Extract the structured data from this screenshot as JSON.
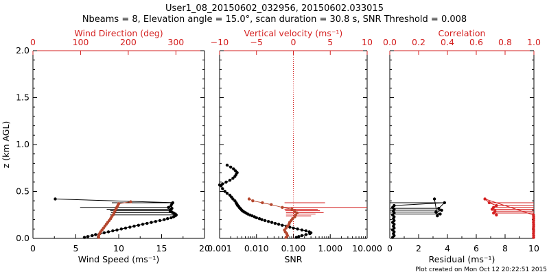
{
  "title_line1": "User1_08_20150602_032956, 20150602.033015",
  "title_line2": "Nbeams = 8, Elevation angle = 15.0°, scan duration = 30.8 s, SNR Threshold = 0.008",
  "credit": "Plot created on Mon Oct 12 20:22:51 2015",
  "colors": {
    "primary": "#000000",
    "secondary": "#d42020",
    "series_brown": "#b5472e"
  },
  "chart_data": [
    {
      "type": "scatter",
      "y_axis": {
        "label": "z (km AGL)",
        "range": [
          0,
          2.0
        ],
        "ticks": [
          "0.0",
          "0.5",
          "1.0",
          "1.5",
          "2.0"
        ]
      },
      "bottom_axis": {
        "label": "Wind Speed (ms⁻¹)",
        "range": [
          0,
          20
        ],
        "ticks": [
          "0",
          "5",
          "10",
          "15",
          "20"
        ]
      },
      "top_axis": {
        "label": "Wind Direction (deg)",
        "range": [
          0,
          360
        ],
        "ticks": [
          "0",
          "100",
          "200",
          "300"
        ]
      },
      "series": [
        {
          "axis": "bottom",
          "color": "#000000",
          "points": [
            [
              6.0,
              0.01
            ],
            [
              6.4,
              0.02
            ],
            [
              6.9,
              0.03
            ],
            [
              7.3,
              0.04
            ],
            [
              7.8,
              0.05
            ],
            [
              8.3,
              0.06
            ],
            [
              8.8,
              0.07
            ],
            [
              9.3,
              0.08
            ],
            [
              9.8,
              0.09
            ],
            [
              10.3,
              0.1
            ],
            [
              10.8,
              0.11
            ],
            [
              11.3,
              0.12
            ],
            [
              11.8,
              0.13
            ],
            [
              12.3,
              0.14
            ],
            [
              12.8,
              0.15
            ],
            [
              13.3,
              0.16
            ],
            [
              13.8,
              0.17
            ],
            [
              14.3,
              0.18
            ],
            [
              14.8,
              0.19
            ],
            [
              15.3,
              0.2
            ],
            [
              15.7,
              0.21
            ],
            [
              16.1,
              0.22
            ],
            [
              16.4,
              0.23
            ],
            [
              16.6,
              0.24
            ],
            [
              16.7,
              0.25
            ],
            [
              16.6,
              0.26
            ],
            [
              16.4,
              0.27
            ],
            [
              16.2,
              0.28
            ],
            [
              16.0,
              0.29
            ],
            [
              16.0,
              0.3
            ],
            [
              16.1,
              0.31
            ],
            [
              16.2,
              0.32
            ],
            [
              15.8,
              0.33
            ],
            [
              16.1,
              0.35
            ],
            [
              16.2,
              0.37
            ],
            [
              16.3,
              0.38
            ],
            [
              2.6,
              0.42
            ]
          ]
        },
        {
          "axis": "top",
          "color": "#b5472e",
          "points": [
            [
              138,
              0.01
            ],
            [
              138,
              0.03
            ],
            [
              140,
              0.05
            ],
            [
              142,
              0.07
            ],
            [
              145,
              0.09
            ],
            [
              148,
              0.11
            ],
            [
              151,
              0.13
            ],
            [
              154,
              0.15
            ],
            [
              157,
              0.17
            ],
            [
              160,
              0.19
            ],
            [
              163,
              0.21
            ],
            [
              165,
              0.23
            ],
            [
              168,
              0.25
            ],
            [
              170,
              0.27
            ],
            [
              172,
              0.29
            ],
            [
              174,
              0.31
            ],
            [
              176,
              0.33
            ],
            [
              178,
              0.35
            ],
            [
              180,
              0.37
            ],
            [
              205,
              0.39
            ]
          ]
        }
      ],
      "lines": [
        {
          "axis": "bottom",
          "y": 0.38,
          "x_from": 9.2,
          "x_to": 16.3,
          "color": "#000000"
        },
        {
          "axis": "bottom",
          "y": 0.33,
          "x_from": 5.5,
          "x_to": 16.0,
          "color": "#000000"
        },
        {
          "axis": "bottom",
          "y": 0.31,
          "x_from": 8.6,
          "x_to": 16.1,
          "color": "#000000"
        },
        {
          "axis": "bottom",
          "y": 0.295,
          "x_from": 9.0,
          "x_to": 16.0,
          "color": "#000000"
        },
        {
          "axis": "bottom",
          "y": 0.275,
          "x_from": 9.1,
          "x_to": 16.3,
          "color": "#000000"
        },
        {
          "axis": "bottom",
          "y": 0.25,
          "x_from": 9.0,
          "x_to": 16.5,
          "color": "#000000"
        }
      ]
    },
    {
      "type": "scatter",
      "x_log": true,
      "bottom_axis": {
        "label": "SNR",
        "range": [
          0.001,
          10
        ],
        "ticks": [
          "0.001",
          "0.010",
          "0.100",
          "1.000",
          "10.000"
        ]
      },
      "top_axis": {
        "label": "Vertical velocity (ms⁻¹)",
        "range": [
          -10,
          10
        ],
        "ticks": [
          "−10",
          "−5",
          "0",
          "5",
          "10"
        ]
      },
      "reference_line": {
        "axis": "top",
        "x": 0,
        "style": "dotted",
        "color": "#d42020"
      },
      "series": [
        {
          "axis": "bottom",
          "color": "#000000",
          "points": [
            [
              0.12,
              0.01
            ],
            [
              0.14,
              0.02
            ],
            [
              0.17,
              0.03
            ],
            [
              0.22,
              0.04
            ],
            [
              0.28,
              0.05
            ],
            [
              0.3,
              0.06
            ],
            [
              0.27,
              0.07
            ],
            [
              0.22,
              0.08
            ],
            [
              0.17,
              0.09
            ],
            [
              0.13,
              0.1
            ],
            [
              0.1,
              0.11
            ],
            [
              0.08,
              0.12
            ],
            [
              0.065,
              0.13
            ],
            [
              0.05,
              0.14
            ],
            [
              0.04,
              0.15
            ],
            [
              0.032,
              0.16
            ],
            [
              0.026,
              0.17
            ],
            [
              0.021,
              0.18
            ],
            [
              0.017,
              0.19
            ],
            [
              0.014,
              0.2
            ],
            [
              0.012,
              0.21
            ],
            [
              0.01,
              0.22
            ],
            [
              0.0088,
              0.23
            ],
            [
              0.0076,
              0.24
            ],
            [
              0.0066,
              0.25
            ],
            [
              0.0058,
              0.26
            ],
            [
              0.0052,
              0.27
            ],
            [
              0.0047,
              0.28
            ],
            [
              0.0043,
              0.29
            ],
            [
              0.004,
              0.3
            ],
            [
              0.0038,
              0.31
            ],
            [
              0.0036,
              0.32
            ],
            [
              0.0034,
              0.33
            ],
            [
              0.0033,
              0.34
            ],
            [
              0.0031,
              0.35
            ],
            [
              0.003,
              0.36
            ],
            [
              0.0029,
              0.37
            ],
            [
              0.0028,
              0.38
            ],
            [
              0.0026,
              0.4
            ],
            [
              0.0023,
              0.42
            ],
            [
              0.0021,
              0.44
            ],
            [
              0.0019,
              0.46
            ],
            [
              0.0016,
              0.48
            ],
            [
              0.0014,
              0.5
            ],
            [
              0.0012,
              0.53
            ],
            [
              0.0011,
              0.56
            ],
            [
              0.001,
              0.57
            ],
            [
              0.0012,
              0.58
            ],
            [
              0.0015,
              0.6
            ],
            [
              0.0019,
              0.62
            ],
            [
              0.0023,
              0.64
            ],
            [
              0.0026,
              0.66
            ],
            [
              0.0028,
              0.68
            ],
            [
              0.003,
              0.7
            ],
            [
              0.0027,
              0.72
            ],
            [
              0.0024,
              0.74
            ],
            [
              0.002,
              0.76
            ],
            [
              0.0016,
              0.78
            ]
          ]
        },
        {
          "axis": "top",
          "color": "#b5472e",
          "points": [
            [
              -1,
              0.01
            ],
            [
              -0.8,
              0.03
            ],
            [
              -0.9,
              0.05
            ],
            [
              -1.1,
              0.07
            ],
            [
              -1.2,
              0.09
            ],
            [
              -1.0,
              0.11
            ],
            [
              -0.8,
              0.13
            ],
            [
              -0.6,
              0.15
            ],
            [
              -0.5,
              0.17
            ],
            [
              -0.3,
              0.19
            ],
            [
              -0.1,
              0.21
            ],
            [
              0.2,
              0.23
            ],
            [
              0.3,
              0.25
            ],
            [
              0.5,
              0.27
            ],
            [
              0.2,
              0.29
            ],
            [
              -0.2,
              0.31
            ],
            [
              -1.5,
              0.33
            ],
            [
              -3.0,
              0.36
            ],
            [
              -4.2,
              0.38
            ],
            [
              -5.5,
              0.4
            ],
            [
              -6.0,
              0.42
            ]
          ]
        }
      ],
      "lines": [
        {
          "axis": "top",
          "y": 0.38,
          "x_from": -1.2,
          "x_to": 4.3,
          "color": "#d42020"
        },
        {
          "axis": "top",
          "y": 0.33,
          "x_from": -1.4,
          "x_to": 10,
          "color": "#d42020"
        },
        {
          "axis": "top",
          "y": 0.31,
          "x_from": -1.2,
          "x_to": 3.3,
          "color": "#d42020"
        },
        {
          "axis": "top",
          "y": 0.295,
          "x_from": -1.1,
          "x_to": 3.6,
          "color": "#d42020"
        },
        {
          "axis": "top",
          "y": 0.275,
          "x_from": -1.0,
          "x_to": 4.1,
          "color": "#d42020"
        },
        {
          "axis": "top",
          "y": 0.26,
          "x_from": -1.0,
          "x_to": 3.0,
          "color": "#d42020"
        },
        {
          "axis": "top",
          "y": 0.24,
          "x_from": -1.0,
          "x_to": 2.4,
          "color": "#d42020"
        }
      ]
    },
    {
      "type": "scatter",
      "bottom_axis": {
        "label": "Residual (ms⁻¹)",
        "range": [
          0,
          10
        ],
        "ticks": [
          "0",
          "2",
          "4",
          "6",
          "8",
          "10"
        ]
      },
      "top_axis": {
        "label": "Correlation",
        "range": [
          0,
          1.0
        ],
        "ticks": [
          "0.0",
          "0.2",
          "0.4",
          "0.6",
          "0.8",
          "1.0"
        ]
      },
      "series": [
        {
          "axis": "bottom",
          "color": "#000000",
          "points": [
            [
              0.2,
              0.01
            ],
            [
              0.3,
              0.03
            ],
            [
              0.25,
              0.05
            ],
            [
              0.3,
              0.07
            ],
            [
              0.2,
              0.09
            ],
            [
              0.3,
              0.11
            ],
            [
              0.25,
              0.13
            ],
            [
              0.3,
              0.15
            ],
            [
              0.2,
              0.17
            ],
            [
              0.3,
              0.19
            ],
            [
              0.25,
              0.21
            ],
            [
              0.3,
              0.23
            ],
            [
              0.2,
              0.25
            ],
            [
              0.3,
              0.27
            ],
            [
              0.25,
              0.29
            ],
            [
              0.3,
              0.31
            ],
            [
              0.2,
              0.33
            ],
            [
              0.3,
              0.35
            ],
            [
              3.8,
              0.38
            ],
            [
              3.4,
              0.32
            ],
            [
              3.6,
              0.3
            ],
            [
              3.2,
              0.28
            ],
            [
              3.5,
              0.26
            ],
            [
              3.3,
              0.24
            ],
            [
              3.1,
              0.42
            ]
          ]
        },
        {
          "axis": "top",
          "color": "#d42020",
          "points": [
            [
              0.998,
              0.01
            ],
            [
              0.998,
              0.03
            ],
            [
              0.997,
              0.05
            ],
            [
              0.998,
              0.07
            ],
            [
              0.998,
              0.09
            ],
            [
              0.997,
              0.11
            ],
            [
              0.998,
              0.13
            ],
            [
              0.998,
              0.15
            ],
            [
              0.997,
              0.17
            ],
            [
              0.998,
              0.19
            ],
            [
              0.998,
              0.21
            ],
            [
              0.998,
              0.23
            ],
            [
              0.997,
              0.25
            ],
            [
              0.66,
              0.42
            ],
            [
              0.69,
              0.38
            ],
            [
              0.74,
              0.35
            ],
            [
              0.72,
              0.33
            ],
            [
              0.71,
              0.31
            ],
            [
              0.73,
              0.29
            ],
            [
              0.72,
              0.27
            ],
            [
              0.74,
              0.25
            ]
          ]
        }
      ],
      "lines": [
        {
          "axis": "bottom",
          "y": 0.38,
          "x_from": 0,
          "x_to": 3.8,
          "color": "#000000"
        },
        {
          "axis": "bottom",
          "y": 0.32,
          "x_from": 0,
          "x_to": 3.4,
          "color": "#000000"
        },
        {
          "axis": "bottom",
          "y": 0.3,
          "x_from": 0,
          "x_to": 3.6,
          "color": "#000000"
        },
        {
          "axis": "bottom",
          "y": 0.28,
          "x_from": 0,
          "x_to": 3.2,
          "color": "#000000"
        },
        {
          "axis": "bottom",
          "y": 0.26,
          "x_from": 0,
          "x_to": 3.5,
          "color": "#000000"
        },
        {
          "axis": "top",
          "y": 0.38,
          "x_from": 0.69,
          "x_to": 1.0,
          "color": "#d42020"
        },
        {
          "axis": "top",
          "y": 0.35,
          "x_from": 0.74,
          "x_to": 1.0,
          "color": "#d42020"
        },
        {
          "axis": "top",
          "y": 0.33,
          "x_from": 0.72,
          "x_to": 1.0,
          "color": "#d42020"
        },
        {
          "axis": "top",
          "y": 0.31,
          "x_from": 0.71,
          "x_to": 1.0,
          "color": "#d42020"
        },
        {
          "axis": "top",
          "y": 0.29,
          "x_from": 0.73,
          "x_to": 1.0,
          "color": "#d42020"
        },
        {
          "axis": "top",
          "y": 0.27,
          "x_from": 0.72,
          "x_to": 1.0,
          "color": "#d42020"
        }
      ]
    }
  ]
}
